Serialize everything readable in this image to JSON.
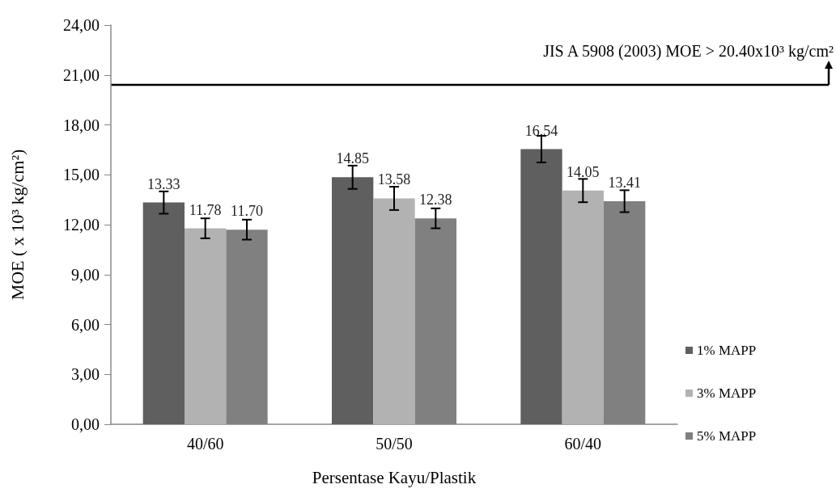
{
  "chart_data": {
    "type": "bar",
    "categories": [
      "40/60",
      "50/50",
      "60/40"
    ],
    "series": [
      {
        "name": "1% MAPP",
        "color": "#5f5f5f",
        "values": [
          13.33,
          14.85,
          16.54
        ],
        "errors": [
          0.67,
          0.7,
          0.8
        ]
      },
      {
        "name": "3% MAPP",
        "color": "#b2b2b2",
        "values": [
          11.78,
          13.58,
          14.05
        ],
        "errors": [
          0.6,
          0.7,
          0.7
        ]
      },
      {
        "name": "5% MAPP",
        "color": "#808080",
        "values": [
          11.7,
          12.38,
          13.41
        ],
        "errors": [
          0.6,
          0.6,
          0.66
        ],
        "value_labels": [
          "11.70",
          "12.38",
          "13.41"
        ]
      }
    ],
    "xlabel": "Persentase Kayu/Plastik",
    "ylabel": "MOE ( x 10³ kg/cm²)",
    "ylim": [
      0,
      24
    ],
    "yticks": [
      {
        "value": 0,
        "label": "0,00"
      },
      {
        "value": 3,
        "label": "3,00"
      },
      {
        "value": 6,
        "label": "6,00"
      },
      {
        "value": 9,
        "label": "9,00"
      },
      {
        "value": 12,
        "label": "12,00"
      },
      {
        "value": 15,
        "label": "15,00"
      },
      {
        "value": 18,
        "label": "18,00"
      },
      {
        "value": 21,
        "label": "21,00"
      },
      {
        "value": 24,
        "label": "24,00"
      }
    ],
    "ref_lines": [
      {
        "axis": "y",
        "value": 20.4,
        "label": "JIS A 5908 (2003) MOE > 20.40x10³ kg/cm²",
        "color": "#000000"
      }
    ],
    "data_labels": true,
    "grid": false,
    "legend": "right"
  }
}
